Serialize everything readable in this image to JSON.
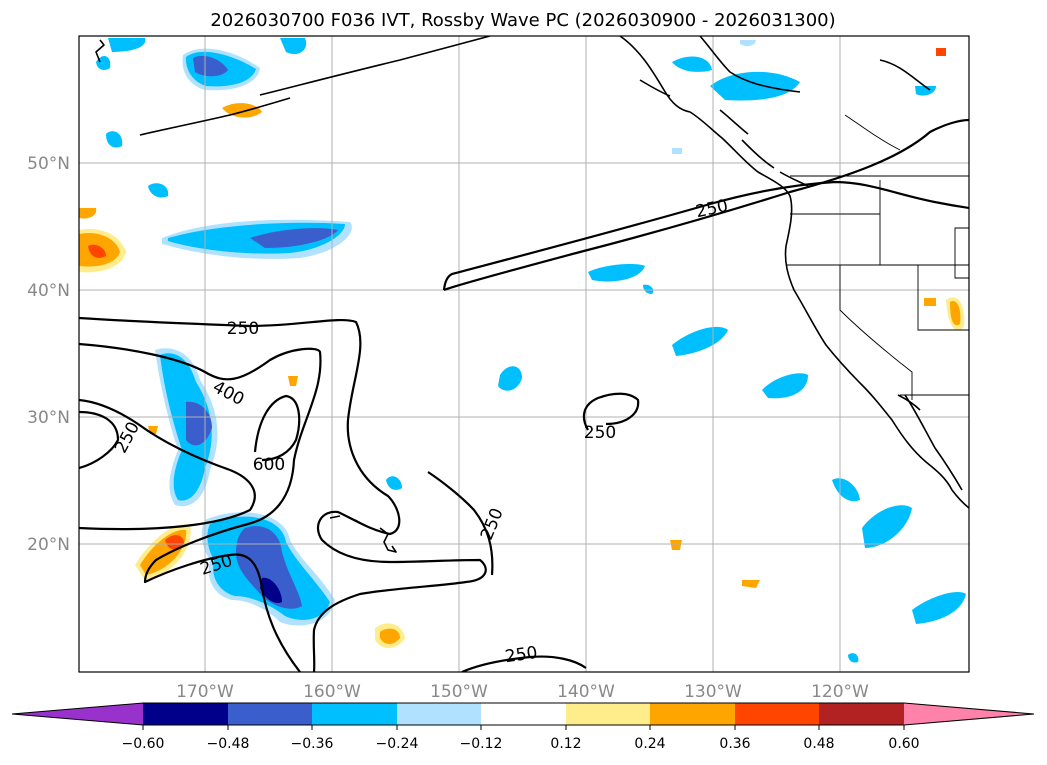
{
  "title": "2026030700 F036 IVT, Rossby Wave PC (2026030900 - 2026031300)",
  "lat_labels": [
    "50°N",
    "40°N",
    "30°N",
    "20°N"
  ],
  "lon_labels": [
    "170°W",
    "160°W",
    "150°W",
    "140°W",
    "130°W",
    "120°W"
  ],
  "contour_labels": [
    "250",
    "250",
    "400",
    "250",
    "600",
    "250",
    "250",
    "250",
    "250"
  ],
  "colorbar": {
    "ticks": [
      "−0.60",
      "−0.48",
      "−0.36",
      "−0.24",
      "−0.12",
      "0.12",
      "0.24",
      "0.36",
      "0.48",
      "0.60"
    ],
    "colors": [
      "#9932cc",
      "#00008b",
      "#3a5fcd",
      "#00bfff",
      "#b0e2ff",
      "#ffffff",
      "#ffec8b",
      "#ffa500",
      "#ff4500",
      "#b22222",
      "#ff82ab"
    ]
  },
  "fill_colors": {
    "neg_light": "#b0e2ff",
    "neg_mid": "#00bfff",
    "neg_strong": "#3a5fcd",
    "neg_max": "#00008b",
    "pos_light": "#ffec8b",
    "pos_mid": "#ffa500",
    "pos_strong": "#ff4500"
  }
}
